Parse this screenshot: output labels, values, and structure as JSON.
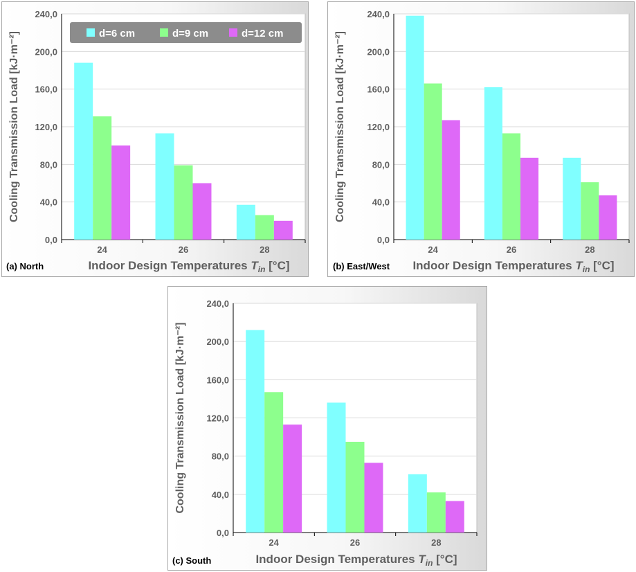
{
  "legend": [
    {
      "label": "d=6 cm",
      "color": "#80ffff"
    },
    {
      "label": "d=9 cm",
      "color": "#8dff8d"
    },
    {
      "label": "d=12 cm",
      "color": "#de69f7"
    }
  ],
  "chart_data": [
    {
      "type": "bar",
      "panel_label": "(a) North",
      "categories": [
        "24",
        "26",
        "28"
      ],
      "series": [
        {
          "name": "d=6 cm",
          "values": [
            188.0,
            113.0,
            37.0
          ]
        },
        {
          "name": "d=9 cm",
          "values": [
            131.0,
            79.0,
            26.0
          ]
        },
        {
          "name": "d=12 cm",
          "values": [
            100.0,
            60.0,
            20.0
          ]
        }
      ],
      "ylim": [
        0,
        240
      ],
      "yticks": [
        "0,0",
        "40,0",
        "80,0",
        "120,0",
        "160,0",
        "200,0",
        "240,0"
      ],
      "ylabel": "Cooling Transmission Load [kJ·m⁻²]",
      "xlabel_main": "Indoor Design Temperatures ",
      "xlabel_var": "T",
      "xlabel_sub": "in",
      "xlabel_unit": " [°C]",
      "grid": true,
      "legend": "top"
    },
    {
      "type": "bar",
      "panel_label": "(b) East/West",
      "categories": [
        "24",
        "26",
        "28"
      ],
      "series": [
        {
          "name": "d=6 cm",
          "values": [
            238.0,
            162.0,
            87.0
          ]
        },
        {
          "name": "d=9 cm",
          "values": [
            166.0,
            113.0,
            61.0
          ]
        },
        {
          "name": "d=12 cm",
          "values": [
            127.0,
            87.0,
            47.0
          ]
        }
      ],
      "ylim": [
        0,
        240
      ],
      "yticks": [
        "0,0",
        "40,0",
        "80,0",
        "120,0",
        "160,0",
        "200,0",
        "240,0"
      ],
      "ylabel": "Cooling Transmission Load [kJ·m⁻²]",
      "xlabel_main": "Indoor Design Temperatures ",
      "xlabel_var": "T",
      "xlabel_sub": "in",
      "xlabel_unit": " [°C]",
      "grid": true
    },
    {
      "type": "bar",
      "panel_label": "(c) South",
      "categories": [
        "24",
        "26",
        "28"
      ],
      "series": [
        {
          "name": "d=6 cm",
          "values": [
            212.0,
            136.0,
            61.0
          ]
        },
        {
          "name": "d=9 cm",
          "values": [
            147.0,
            95.0,
            42.0
          ]
        },
        {
          "name": "d=12 cm",
          "values": [
            113.0,
            73.0,
            33.0
          ]
        }
      ],
      "ylim": [
        0,
        240
      ],
      "yticks": [
        "0,0",
        "40,0",
        "80,0",
        "120,0",
        "160,0",
        "200,0",
        "240,0"
      ],
      "ylabel": "Cooling Transmission Load [kJ·m⁻²]",
      "xlabel_main": "Indoor Design Temperatures ",
      "xlabel_var": "T",
      "xlabel_sub": "in",
      "xlabel_unit": " [°C]",
      "grid": true
    }
  ]
}
